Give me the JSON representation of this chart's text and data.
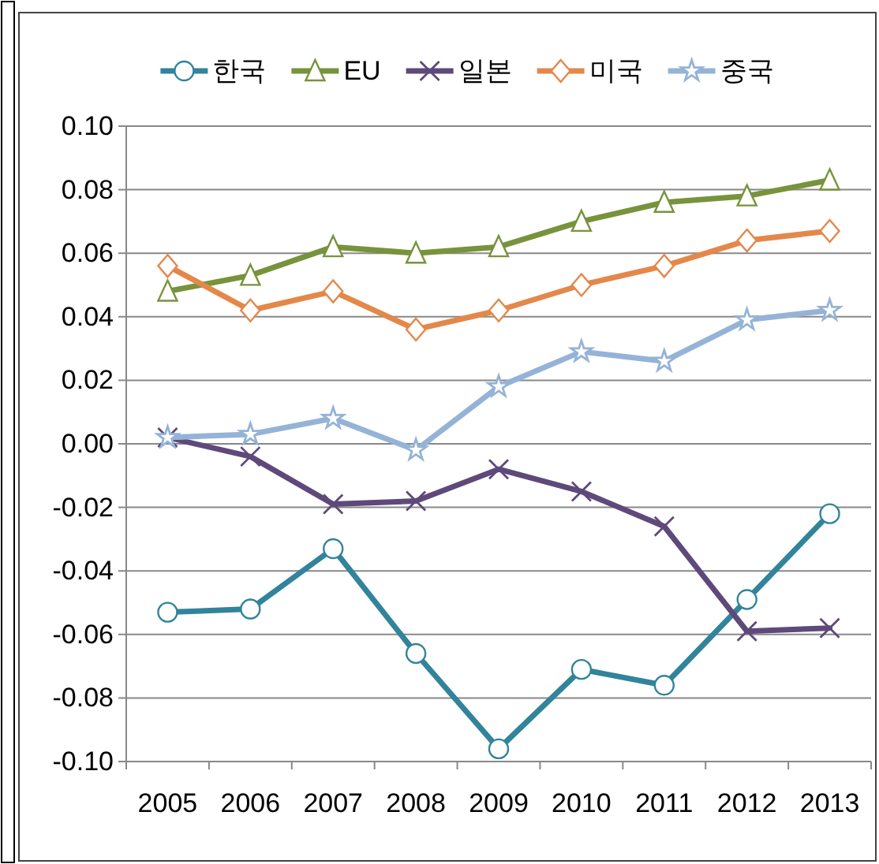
{
  "chart_data": {
    "type": "line",
    "categories": [
      "2005",
      "2006",
      "2007",
      "2008",
      "2009",
      "2010",
      "2011",
      "2012",
      "2013"
    ],
    "series": [
      {
        "name": "한국",
        "color": "#31849b",
        "marker": "circle",
        "values": [
          -0.053,
          -0.052,
          -0.033,
          -0.066,
          -0.096,
          -0.071,
          -0.076,
          -0.049,
          -0.022
        ]
      },
      {
        "name": "EU",
        "color": "#77933c",
        "marker": "triangle",
        "values": [
          0.048,
          0.053,
          0.062,
          0.06,
          0.062,
          0.07,
          0.076,
          0.078,
          0.083
        ]
      },
      {
        "name": "일본",
        "color": "#5f497a",
        "marker": "cross",
        "values": [
          0.002,
          -0.004,
          -0.019,
          -0.018,
          -0.008,
          -0.015,
          -0.026,
          -0.059,
          -0.058
        ]
      },
      {
        "name": "미국",
        "color": "#e3884a",
        "marker": "diamond",
        "values": [
          0.056,
          0.042,
          0.048,
          0.036,
          0.042,
          0.05,
          0.056,
          0.064,
          0.067
        ]
      },
      {
        "name": "중국",
        "color": "#95b3d7",
        "marker": "star",
        "values": [
          0.002,
          0.003,
          0.008,
          -0.002,
          0.018,
          0.029,
          0.026,
          0.039,
          0.042
        ]
      }
    ],
    "ylim": [
      -0.1,
      0.1
    ],
    "yticks": [
      {
        "value": -0.1,
        "label": "-0.10"
      },
      {
        "value": -0.08,
        "label": "-0.08"
      },
      {
        "value": -0.06,
        "label": "-0.06"
      },
      {
        "value": -0.04,
        "label": "-0.04"
      },
      {
        "value": -0.02,
        "label": "-0.02"
      },
      {
        "value": 0,
        "label": "0.00"
      },
      {
        "value": 0.02,
        "label": "0.02"
      },
      {
        "value": 0.04,
        "label": "0.04"
      },
      {
        "value": 0.06,
        "label": "0.06"
      },
      {
        "value": 0.08,
        "label": "0.08"
      },
      {
        "value": 0.1,
        "label": "0.10"
      }
    ],
    "grid": "y",
    "legend": "top"
  }
}
